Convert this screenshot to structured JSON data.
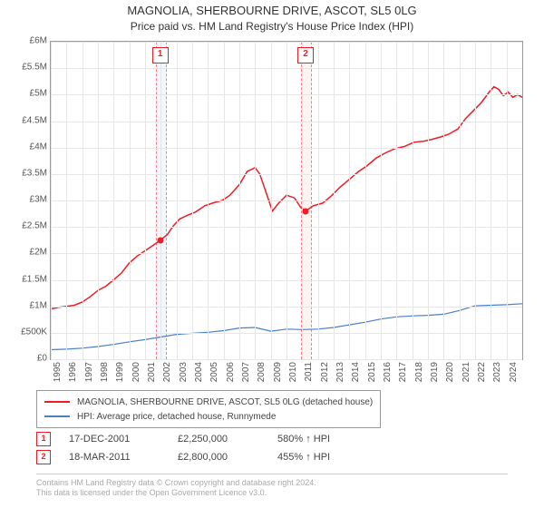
{
  "title": "MAGNOLIA, SHERBOURNE DRIVE, ASCOT, SL5 0LG",
  "subtitle": "Price paid vs. HM Land Registry's House Price Index (HPI)",
  "chart": {
    "type": "line",
    "x_range": [
      1995,
      2025
    ],
    "y_range": [
      0,
      6000000
    ],
    "y_ticks": [
      0,
      500000,
      1000000,
      1500000,
      2000000,
      2500000,
      3000000,
      3500000,
      4000000,
      4500000,
      5000000,
      5500000,
      6000000
    ],
    "y_labels": [
      "£0",
      "£500K",
      "£1M",
      "£1.5M",
      "£2M",
      "£2.5M",
      "£3M",
      "£3.5M",
      "£4M",
      "£4.5M",
      "£5M",
      "£5.5M",
      "£6M"
    ],
    "x_ticks": [
      1995,
      1996,
      1997,
      1998,
      1999,
      2000,
      2001,
      2002,
      2003,
      2004,
      2005,
      2006,
      2007,
      2008,
      2009,
      2010,
      2011,
      2012,
      2013,
      2014,
      2015,
      2016,
      2017,
      2018,
      2019,
      2020,
      2021,
      2022,
      2023,
      2024
    ],
    "background_color": "#ffffff",
    "grid_color": "#e6e6e6",
    "border_color": "#999999",
    "series": [
      {
        "id": "property",
        "label": "MAGNOLIA, SHERBOURNE DRIVE, ASCOT, SL5 0LG (detached house)",
        "color": "#ee1c25",
        "line_width": 1.5,
        "points": [
          [
            1995.0,
            950000
          ],
          [
            1995.5,
            980000
          ],
          [
            1996.0,
            1000000
          ],
          [
            1996.5,
            1020000
          ],
          [
            1997.0,
            1080000
          ],
          [
            1997.5,
            1180000
          ],
          [
            1998.0,
            1300000
          ],
          [
            1998.5,
            1380000
          ],
          [
            1999.0,
            1500000
          ],
          [
            1999.5,
            1630000
          ],
          [
            2000.0,
            1820000
          ],
          [
            2000.5,
            1950000
          ],
          [
            2001.0,
            2050000
          ],
          [
            2001.5,
            2150000
          ],
          [
            2001.96,
            2250000
          ],
          [
            2002.4,
            2350000
          ],
          [
            2002.8,
            2520000
          ],
          [
            2003.2,
            2650000
          ],
          [
            2003.7,
            2720000
          ],
          [
            2004.2,
            2780000
          ],
          [
            2004.8,
            2900000
          ],
          [
            2005.3,
            2950000
          ],
          [
            2005.9,
            3000000
          ],
          [
            2006.4,
            3100000
          ],
          [
            2007.0,
            3300000
          ],
          [
            2007.5,
            3550000
          ],
          [
            2008.0,
            3620000
          ],
          [
            2008.3,
            3500000
          ],
          [
            2008.7,
            3150000
          ],
          [
            2009.1,
            2800000
          ],
          [
            2009.5,
            2950000
          ],
          [
            2010.0,
            3100000
          ],
          [
            2010.5,
            3050000
          ],
          [
            2010.9,
            2870000
          ],
          [
            2011.21,
            2800000
          ],
          [
            2011.7,
            2900000
          ],
          [
            2012.3,
            2950000
          ],
          [
            2012.9,
            3100000
          ],
          [
            2013.4,
            3250000
          ],
          [
            2014.0,
            3400000
          ],
          [
            2014.6,
            3550000
          ],
          [
            2015.1,
            3650000
          ],
          [
            2015.7,
            3800000
          ],
          [
            2016.3,
            3900000
          ],
          [
            2016.9,
            3980000
          ],
          [
            2017.5,
            4020000
          ],
          [
            2018.1,
            4100000
          ],
          [
            2018.7,
            4120000
          ],
          [
            2019.2,
            4150000
          ],
          [
            2019.8,
            4200000
          ],
          [
            2020.3,
            4250000
          ],
          [
            2020.9,
            4350000
          ],
          [
            2021.4,
            4550000
          ],
          [
            2021.9,
            4700000
          ],
          [
            2022.4,
            4850000
          ],
          [
            2022.9,
            5050000
          ],
          [
            2023.2,
            5150000
          ],
          [
            2023.5,
            5100000
          ],
          [
            2023.8,
            4980000
          ],
          [
            2024.1,
            5050000
          ],
          [
            2024.4,
            4950000
          ],
          [
            2024.7,
            5000000
          ],
          [
            2025.0,
            4950000
          ]
        ]
      },
      {
        "id": "hpi",
        "label": "HPI: Average price, detached house, Runnymede",
        "color": "#4b7fc9",
        "line_width": 1.2,
        "points": [
          [
            1995.0,
            180000
          ],
          [
            1996.0,
            190000
          ],
          [
            1997.0,
            210000
          ],
          [
            1998.0,
            240000
          ],
          [
            1999.0,
            280000
          ],
          [
            2000.0,
            330000
          ],
          [
            2001.0,
            370000
          ],
          [
            2002.0,
            420000
          ],
          [
            2003.0,
            470000
          ],
          [
            2004.0,
            490000
          ],
          [
            2005.0,
            510000
          ],
          [
            2006.0,
            540000
          ],
          [
            2007.0,
            590000
          ],
          [
            2008.0,
            600000
          ],
          [
            2009.0,
            530000
          ],
          [
            2010.0,
            570000
          ],
          [
            2011.0,
            560000
          ],
          [
            2012.0,
            570000
          ],
          [
            2013.0,
            600000
          ],
          [
            2014.0,
            650000
          ],
          [
            2015.0,
            700000
          ],
          [
            2016.0,
            760000
          ],
          [
            2017.0,
            800000
          ],
          [
            2018.0,
            820000
          ],
          [
            2019.0,
            830000
          ],
          [
            2020.0,
            850000
          ],
          [
            2021.0,
            920000
          ],
          [
            2022.0,
            1010000
          ],
          [
            2023.0,
            1020000
          ],
          [
            2024.0,
            1030000
          ],
          [
            2025.0,
            1050000
          ]
        ]
      }
    ],
    "markers": [
      {
        "id": "1",
        "x": 2001.96,
        "y": 2250000,
        "color": "#ee1c25",
        "band_bg": "#eaf0fa"
      },
      {
        "id": "2",
        "x": 2011.21,
        "y": 2800000,
        "color": "#ee1c25",
        "band_bg": "#fdebeb"
      }
    ]
  },
  "legend": {
    "items": [
      {
        "color": "#ee1c25",
        "text": "MAGNOLIA, SHERBOURNE DRIVE, ASCOT, SL5 0LG (detached house)"
      },
      {
        "color": "#4b7fc9",
        "text": "HPI: Average price, detached house, Runnymede"
      }
    ]
  },
  "sales": [
    {
      "marker": "1",
      "color": "#ee1c25",
      "date": "17-DEC-2001",
      "price": "£2,250,000",
      "delta": "580% ↑ HPI"
    },
    {
      "marker": "2",
      "color": "#ee1c25",
      "date": "18-MAR-2011",
      "price": "£2,800,000",
      "delta": "455% ↑ HPI"
    }
  ],
  "footer": {
    "line1": "Contains HM Land Registry data © Crown copyright and database right 2024.",
    "line2": "This data is licensed under the Open Government Licence v3.0."
  }
}
